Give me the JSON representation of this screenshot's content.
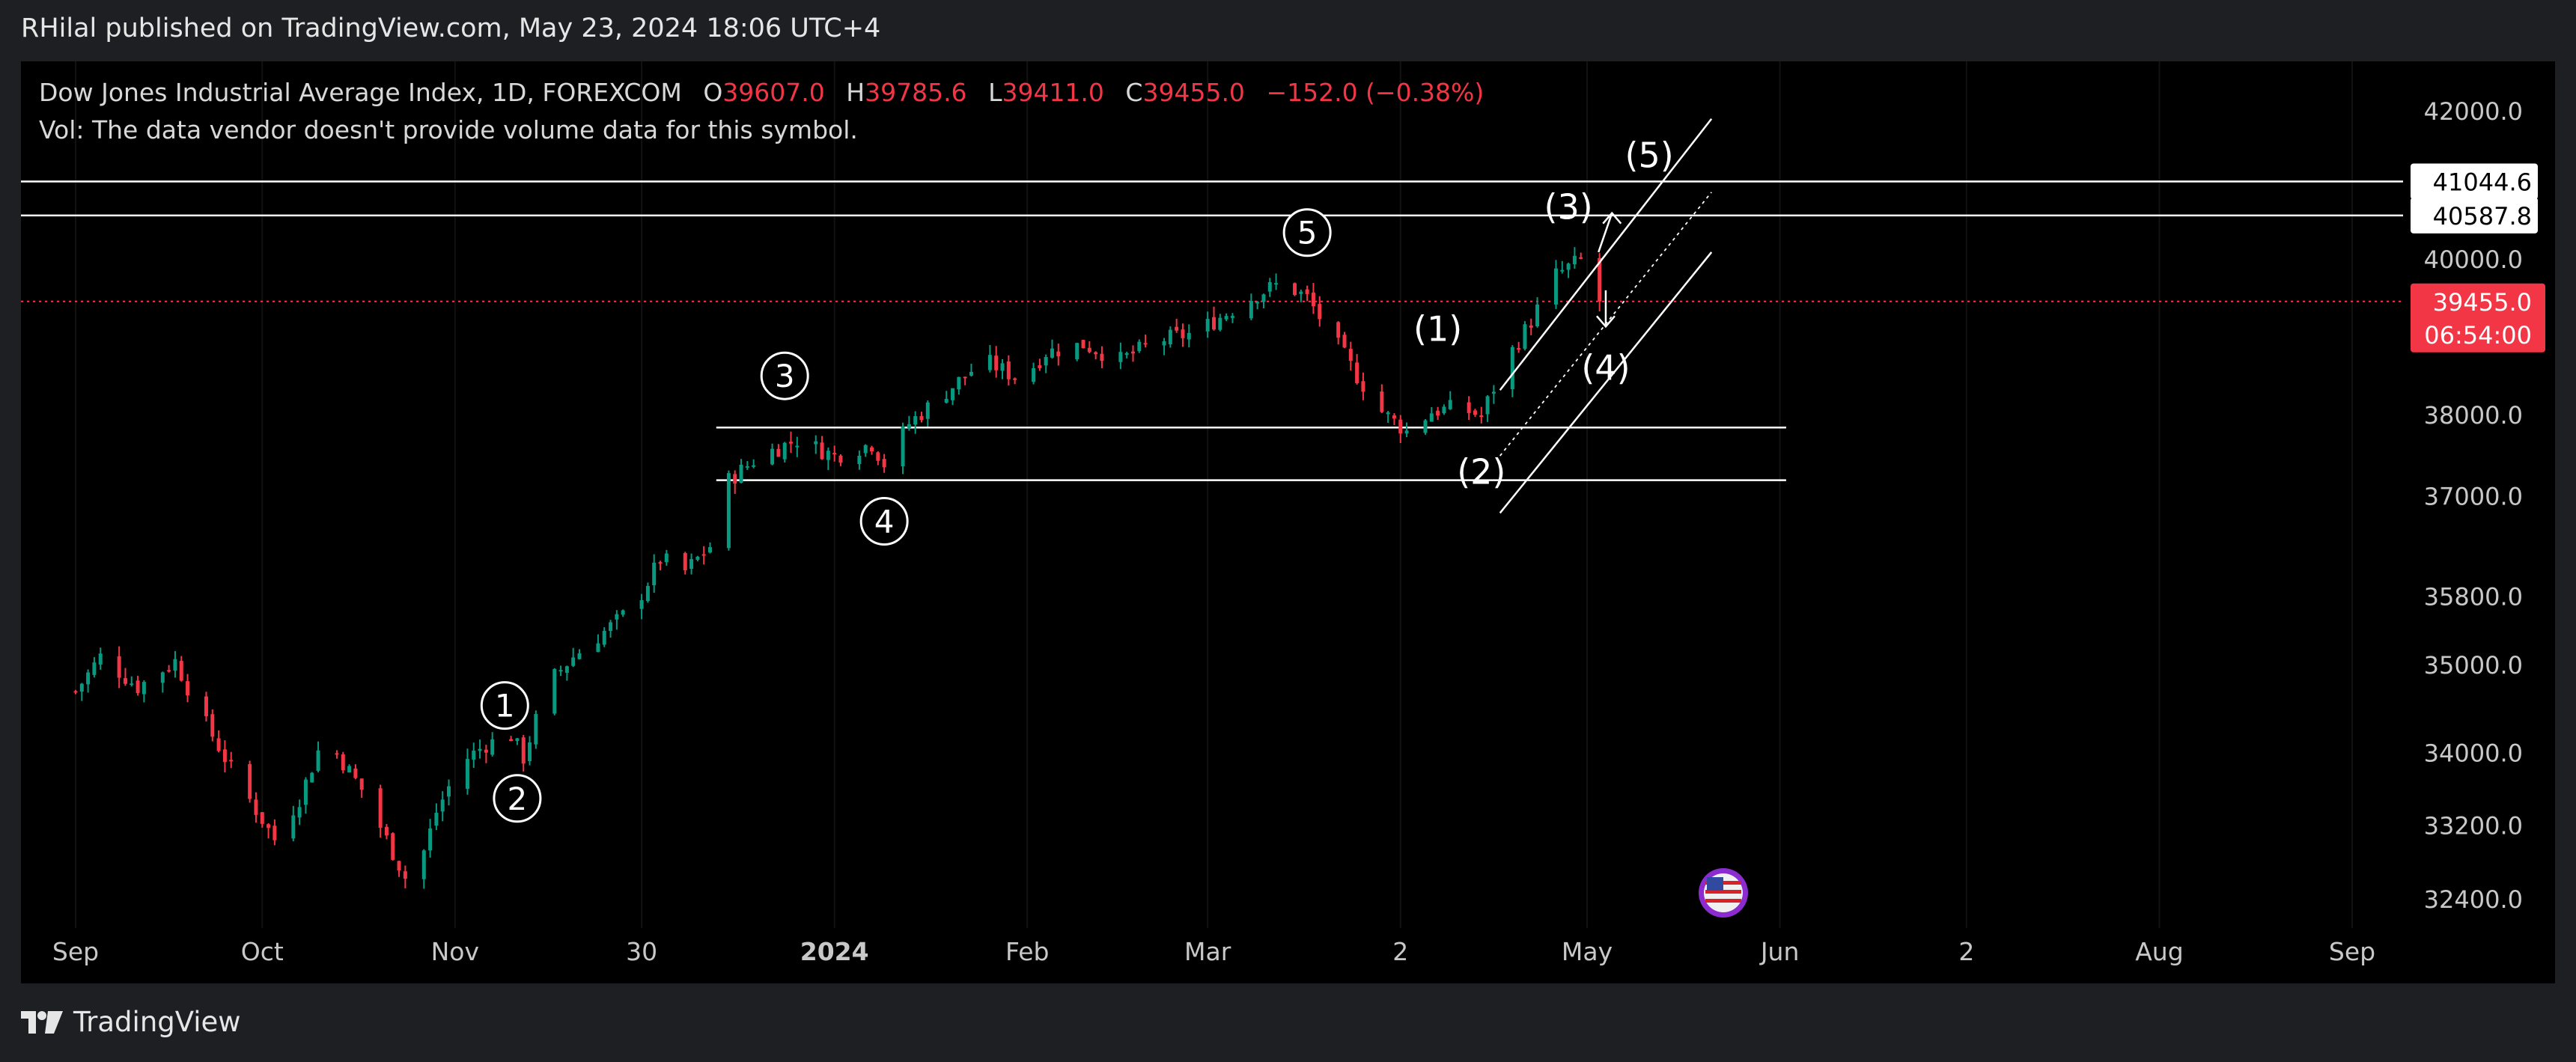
{
  "header": {
    "publisher": "RHilal published on TradingView.com, May 23, 2024 18:06 UTC+4"
  },
  "legend": {
    "symbol": "Dow Jones Industrial Average Index, 1D, FOREXCOM",
    "o_label": "O",
    "o_value": "39607.0",
    "h_label": "H",
    "h_value": "39785.6",
    "l_label": "L",
    "l_value": "39411.0",
    "c_label": "C",
    "c_value": "39455.0",
    "change": "−152.0 (−0.38%)",
    "vol": "Vol: The data vendor doesn't provide volume data for this symbol."
  },
  "footer": {
    "brand": "TradingView"
  },
  "colors": {
    "up": "#089981",
    "down": "#f23645",
    "background": "#000000",
    "line": "#ffffff",
    "price_line": "#f23645"
  },
  "chart_data": {
    "type": "candlestick",
    "y_scale": "log",
    "ylim": [
      32100,
      42700
    ],
    "price_ticks": [
      "42000.0",
      "40000.0",
      "38000.0",
      "37000.0",
      "35800.0",
      "35000.0",
      "34000.0",
      "33200.0",
      "32400.0"
    ],
    "price_tick_values": [
      42000,
      40000,
      38000,
      37000,
      35800,
      35000,
      34000,
      33200,
      32400
    ],
    "time_labels": [
      "Sep",
      "Oct",
      "Nov",
      "30",
      "2024",
      "Feb",
      "Mar",
      "2",
      "May",
      "Jun",
      "2",
      "Aug",
      "Sep"
    ],
    "time_label_days": [
      0,
      30,
      61,
      91,
      122,
      153,
      182,
      213,
      243,
      274,
      304,
      335,
      366
    ],
    "last_price": "39455.0",
    "countdown": "06:54:00",
    "levels": [
      {
        "price": 41044.6,
        "label": "41044.6"
      },
      {
        "price": 40587.8,
        "label": "40587.8"
      }
    ],
    "ranges": [
      {
        "price": 37850,
        "from_day": 103,
        "to_day": 275
      },
      {
        "price": 37200,
        "from_day": 103,
        "to_day": 275
      }
    ],
    "channel": {
      "upper": [
        [
          229,
          38320
        ],
        [
          263,
          41900
        ]
      ],
      "lower": [
        [
          229,
          36800
        ],
        [
          263,
          40100
        ]
      ],
      "middle": [
        [
          229,
          37500
        ],
        [
          263,
          40900
        ]
      ]
    },
    "wave_labels": [
      {
        "text": "1",
        "circled": true,
        "day": 69,
        "price": 34540
      },
      {
        "text": "2",
        "circled": true,
        "day": 71,
        "price": 33500
      },
      {
        "text": "3",
        "circled": true,
        "day": 114,
        "price": 38500
      },
      {
        "text": "4",
        "circled": true,
        "day": 130,
        "price": 36700
      },
      {
        "text": "5",
        "circled": true,
        "day": 198,
        "price": 40360
      },
      {
        "text": "(1)",
        "circled": false,
        "day": 219,
        "price": 39100
      },
      {
        "text": "(2)",
        "circled": false,
        "day": 226,
        "price": 37300
      },
      {
        "text": "(3)",
        "circled": false,
        "day": 240,
        "price": 40700
      },
      {
        "text": "(4)",
        "circled": false,
        "day": 246,
        "price": 38600
      },
      {
        "text": "(5)",
        "circled": false,
        "day": 253,
        "price": 41400
      }
    ],
    "arrows": [
      {
        "direction": "up",
        "day": 247,
        "from": 40100,
        "to": 40620
      },
      {
        "direction": "down",
        "day": 246,
        "from": 39600,
        "to": 39130
      }
    ],
    "anchors": [
      [
        0,
        34700
      ],
      [
        4,
        35100
      ],
      [
        10,
        34750
      ],
      [
        16,
        35050
      ],
      [
        20,
        34450
      ],
      [
        26,
        33700
      ],
      [
        32,
        33050
      ],
      [
        36,
        33500
      ],
      [
        40,
        34200
      ],
      [
        46,
        33600
      ],
      [
        50,
        33050
      ],
      [
        54,
        32500
      ],
      [
        58,
        33350
      ],
      [
        62,
        33900
      ],
      [
        66,
        34100
      ],
      [
        70,
        34200
      ],
      [
        72,
        33950
      ],
      [
        76,
        34800
      ],
      [
        80,
        35100
      ],
      [
        86,
        35450
      ],
      [
        90,
        35700
      ],
      [
        94,
        36250
      ],
      [
        98,
        36100
      ],
      [
        102,
        36400
      ],
      [
        105,
        37200
      ],
      [
        110,
        37500
      ],
      [
        116,
        37700
      ],
      [
        122,
        37500
      ],
      [
        128,
        37650
      ],
      [
        130,
        37400
      ],
      [
        134,
        37900
      ],
      [
        140,
        38300
      ],
      [
        146,
        38700
      ],
      [
        152,
        38450
      ],
      [
        156,
        38800
      ],
      [
        162,
        38900
      ],
      [
        168,
        38700
      ],
      [
        174,
        38950
      ],
      [
        180,
        39050
      ],
      [
        184,
        39250
      ],
      [
        190,
        39550
      ],
      [
        194,
        39700
      ],
      [
        198,
        39500
      ],
      [
        202,
        39000
      ],
      [
        206,
        38500
      ],
      [
        210,
        38050
      ],
      [
        214,
        37800
      ],
      [
        218,
        38050
      ],
      [
        222,
        38100
      ],
      [
        226,
        38000
      ],
      [
        230,
        38700
      ],
      [
        234,
        39200
      ],
      [
        238,
        39800
      ],
      [
        242,
        40000
      ],
      [
        245,
        39455
      ]
    ]
  }
}
